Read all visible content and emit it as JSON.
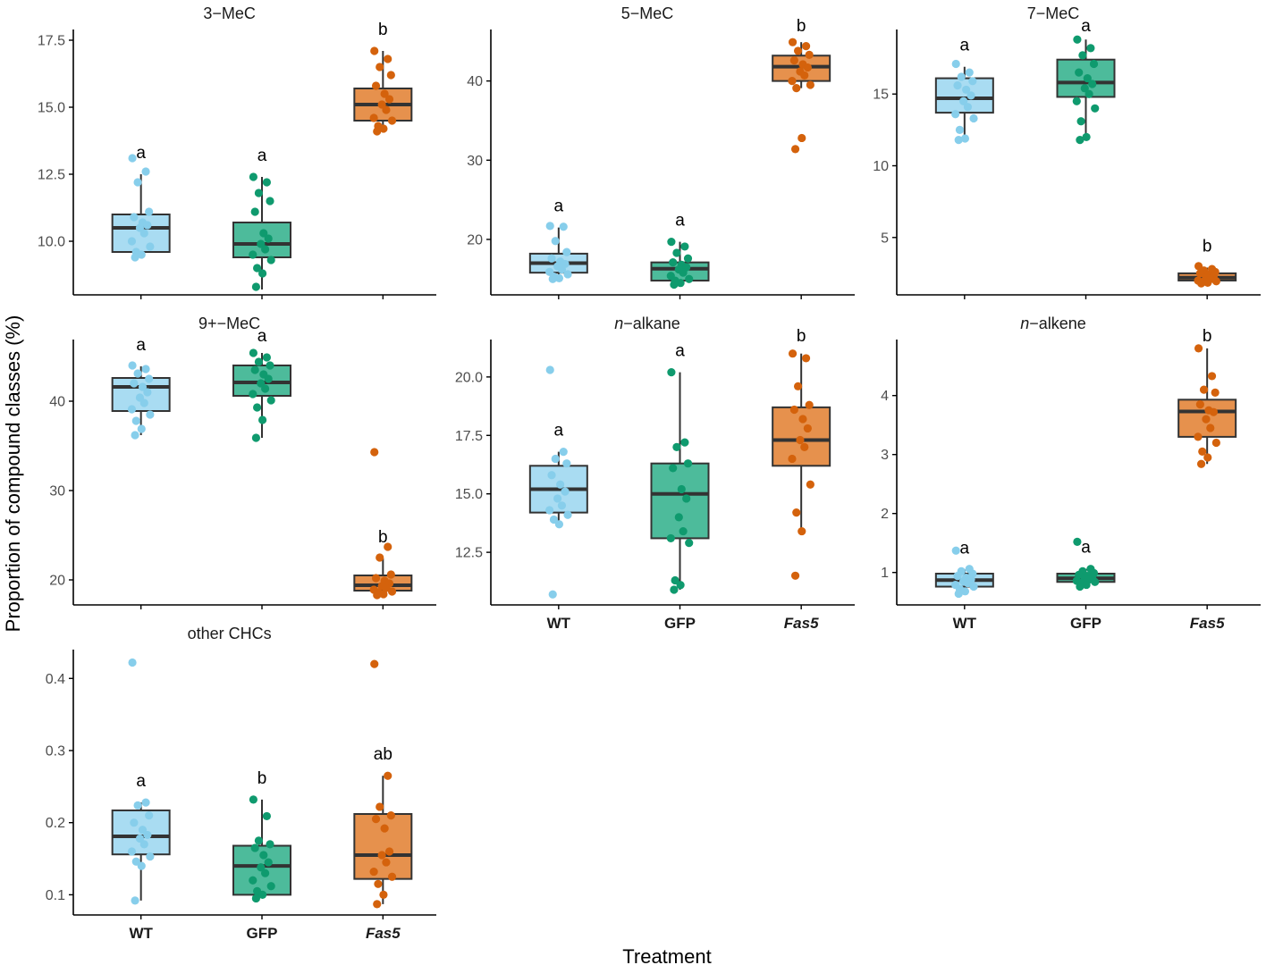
{
  "figure": {
    "ylabel": "Proportion of compound classes (%)",
    "xlabel": "Treatment"
  },
  "colors": {
    "WT": {
      "fill": "#a9dcf2",
      "point": "#87ceeb"
    },
    "GFP": {
      "fill": "#4dbb9b",
      "point": "#0f9a6e"
    },
    "Fas5": {
      "fill": "#e6914d",
      "point": "#d4620c"
    },
    "box_stroke": "#333333",
    "axis": "#000000"
  },
  "chart_data": [
    {
      "type": "box",
      "title": "3−MeC",
      "title_italic_prefix": "",
      "categories": [
        "WT",
        "GFP",
        "Fas5"
      ],
      "category_italic": [
        false,
        false,
        true
      ],
      "show_category_labels": false,
      "ylim": [
        8.0,
        17.9
      ],
      "yticks": [
        10.0,
        12.5,
        15.0,
        17.5
      ],
      "tick_decimals": 1,
      "boxes": [
        {
          "q1": 9.6,
          "median": 10.5,
          "q3": 11.0,
          "whisker_low": 9.4,
          "whisker_high": 12.5,
          "letter": "a"
        },
        {
          "q1": 9.4,
          "median": 9.9,
          "q3": 10.7,
          "whisker_low": 8.2,
          "whisker_high": 12.4,
          "letter": "a"
        },
        {
          "q1": 14.5,
          "median": 15.1,
          "q3": 15.7,
          "whisker_low": 14.1,
          "whisker_high": 17.1,
          "letter": "b"
        }
      ],
      "points": [
        [
          13.1,
          12.6,
          12.2,
          11.1,
          10.9,
          10.7,
          10.6,
          10.5,
          10.3,
          10.0,
          9.8,
          9.6,
          9.5,
          9.4
        ],
        [
          12.4,
          12.2,
          11.8,
          11.5,
          11.1,
          10.3,
          10.1,
          9.9,
          9.7,
          9.5,
          9.3,
          9.0,
          8.8,
          8.3
        ],
        [
          17.1,
          16.8,
          16.5,
          16.2,
          15.8,
          15.5,
          15.3,
          15.1,
          14.9,
          14.6,
          14.5,
          14.3,
          14.2,
          14.1
        ]
      ]
    },
    {
      "type": "box",
      "title": "5−MeC",
      "title_italic_prefix": "",
      "categories": [
        "WT",
        "GFP",
        "Fas5"
      ],
      "category_italic": [
        false,
        false,
        true
      ],
      "show_category_labels": false,
      "ylim": [
        13.0,
        46.5
      ],
      "yticks": [
        20,
        30,
        40
      ],
      "tick_decimals": 0,
      "boxes": [
        {
          "q1": 15.8,
          "median": 17.0,
          "q3": 18.2,
          "whisker_low": 15.0,
          "whisker_high": 21.5,
          "letter": "a"
        },
        {
          "q1": 14.8,
          "median": 16.3,
          "q3": 17.1,
          "whisker_low": 14.3,
          "whisker_high": 19.7,
          "letter": "a"
        },
        {
          "q1": 40.0,
          "median": 41.8,
          "q3": 43.2,
          "whisker_low": 39.1,
          "whisker_high": 44.9,
          "letter": "b"
        }
      ],
      "points": [
        [
          21.7,
          21.6,
          19.8,
          18.4,
          17.6,
          17.2,
          16.9,
          16.6,
          16.2,
          15.9,
          15.6,
          15.3,
          15.1,
          15.0
        ],
        [
          19.7,
          19.1,
          18.3,
          17.6,
          17.1,
          16.8,
          16.5,
          16.2,
          15.8,
          15.4,
          15.0,
          14.8,
          14.5,
          14.3
        ],
        [
          44.9,
          44.4,
          43.8,
          43.3,
          42.6,
          42.1,
          41.7,
          41.2,
          40.7,
          40.0,
          39.5,
          39.1,
          32.8,
          31.4
        ]
      ]
    },
    {
      "type": "box",
      "title": "7−MeC",
      "title_italic_prefix": "",
      "categories": [
        "WT",
        "GFP",
        "Fas5"
      ],
      "category_italic": [
        false,
        false,
        true
      ],
      "show_category_labels": false,
      "ylim": [
        1.0,
        19.5
      ],
      "yticks": [
        5,
        10,
        15
      ],
      "tick_decimals": 0,
      "boxes": [
        {
          "q1": 13.7,
          "median": 14.7,
          "q3": 16.1,
          "whisker_low": 11.8,
          "whisker_high": 16.9,
          "letter": "a"
        },
        {
          "q1": 14.8,
          "median": 15.8,
          "q3": 17.4,
          "whisker_low": 11.8,
          "whisker_high": 18.8,
          "letter": "a"
        },
        {
          "q1": 2.0,
          "median": 2.2,
          "q3": 2.5,
          "whisker_low": 1.8,
          "whisker_high": 2.9,
          "letter": "b"
        }
      ],
      "points": [
        [
          17.1,
          16.5,
          16.2,
          15.9,
          15.6,
          15.3,
          14.9,
          14.5,
          14.1,
          13.6,
          13.3,
          12.5,
          11.9,
          11.8
        ],
        [
          18.8,
          18.2,
          17.7,
          17.1,
          16.5,
          16.1,
          15.7,
          15.4,
          15.0,
          14.5,
          14.0,
          13.1,
          12.0,
          11.8
        ],
        [
          3.0,
          2.8,
          2.7,
          2.6,
          2.5,
          2.4,
          2.3,
          2.2,
          2.1,
          2.0,
          1.95,
          1.9,
          1.85,
          1.8
        ]
      ]
    },
    {
      "type": "box",
      "title": "9+−MeC",
      "title_italic_prefix": "",
      "categories": [
        "WT",
        "GFP",
        "Fas5"
      ],
      "category_italic": [
        false,
        false,
        true
      ],
      "show_category_labels": false,
      "ylim": [
        17.2,
        46.9
      ],
      "yticks": [
        20,
        30,
        40
      ],
      "tick_decimals": 0,
      "boxes": [
        {
          "q1": 38.9,
          "median": 41.6,
          "q3": 42.6,
          "whisker_low": 36.2,
          "whisker_high": 43.9,
          "letter": "a"
        },
        {
          "q1": 40.6,
          "median": 42.1,
          "q3": 44.0,
          "whisker_low": 35.9,
          "whisker_high": 45.4,
          "letter": "a"
        },
        {
          "q1": 18.8,
          "median": 19.4,
          "q3": 20.5,
          "whisker_low": 18.3,
          "whisker_high": 22.4,
          "letter": "b"
        }
      ],
      "points": [
        [
          44.0,
          43.6,
          43.1,
          42.5,
          42.0,
          41.6,
          41.0,
          40.4,
          39.8,
          39.1,
          38.5,
          37.8,
          36.9,
          36.2
        ],
        [
          45.4,
          44.9,
          44.4,
          44.0,
          43.5,
          43.0,
          42.5,
          42.0,
          41.4,
          40.8,
          40.1,
          39.3,
          37.9,
          35.9
        ],
        [
          34.3,
          23.7,
          22.5,
          20.6,
          20.2,
          19.9,
          19.6,
          19.3,
          19.1,
          18.9,
          18.7,
          18.6,
          18.4,
          18.3
        ]
      ]
    },
    {
      "type": "box",
      "title": "alkane",
      "title_italic_prefix": "n",
      "categories": [
        "WT",
        "GFP",
        "Fas5"
      ],
      "category_italic": [
        false,
        false,
        true
      ],
      "show_category_labels": true,
      "ylim": [
        10.25,
        21.6
      ],
      "yticks": [
        12.5,
        15.0,
        17.5,
        20.0
      ],
      "tick_decimals": 1,
      "boxes": [
        {
          "q1": 14.2,
          "median": 15.2,
          "q3": 16.2,
          "whisker_low": 13.7,
          "whisker_high": 16.8,
          "letter": "a"
        },
        {
          "q1": 13.1,
          "median": 15.0,
          "q3": 16.3,
          "whisker_low": 10.9,
          "whisker_high": 20.2,
          "letter": "a"
        },
        {
          "q1": 16.2,
          "median": 17.3,
          "q3": 18.7,
          "whisker_low": 13.4,
          "whisker_high": 21.0,
          "letter": "b"
        }
      ],
      "points": [
        [
          20.3,
          16.8,
          16.5,
          16.3,
          15.8,
          15.4,
          15.1,
          14.8,
          14.5,
          14.3,
          14.1,
          13.9,
          13.7,
          10.7
        ],
        [
          20.2,
          17.2,
          17.0,
          16.3,
          16.1,
          15.2,
          14.8,
          14.0,
          13.4,
          13.1,
          12.9,
          11.3,
          11.1,
          10.9
        ],
        [
          21.0,
          20.8,
          19.6,
          18.8,
          18.6,
          18.2,
          17.8,
          17.3,
          17.0,
          16.5,
          15.4,
          14.2,
          13.4,
          11.5
        ]
      ]
    },
    {
      "type": "box",
      "title": "alkene",
      "title_italic_prefix": "n",
      "categories": [
        "WT",
        "GFP",
        "Fas5"
      ],
      "category_italic": [
        false,
        false,
        true
      ],
      "show_category_labels": true,
      "ylim": [
        0.45,
        4.95
      ],
      "yticks": [
        1,
        2,
        3,
        4
      ],
      "tick_decimals": 0,
      "boxes": [
        {
          "q1": 0.76,
          "median": 0.87,
          "q3": 0.98,
          "whisker_low": 0.64,
          "whisker_high": 1.05,
          "letter": "a"
        },
        {
          "q1": 0.84,
          "median": 0.9,
          "q3": 0.98,
          "whisker_low": 0.76,
          "whisker_high": 1.06,
          "letter": "a"
        },
        {
          "q1": 3.3,
          "median": 3.73,
          "q3": 3.93,
          "whisker_low": 2.84,
          "whisker_high": 4.8,
          "letter": "b"
        }
      ],
      "points": [
        [
          1.37,
          1.06,
          1.02,
          0.98,
          0.94,
          0.91,
          0.88,
          0.85,
          0.82,
          0.79,
          0.76,
          0.72,
          0.68,
          0.64
        ],
        [
          1.52,
          1.06,
          1.02,
          0.99,
          0.96,
          0.94,
          0.92,
          0.9,
          0.88,
          0.86,
          0.84,
          0.82,
          0.79,
          0.76
        ],
        [
          4.8,
          4.33,
          4.1,
          4.05,
          3.85,
          3.75,
          3.72,
          3.6,
          3.45,
          3.3,
          3.2,
          3.05,
          2.95,
          2.84
        ]
      ]
    },
    {
      "type": "box",
      "title": "other CHCs",
      "title_italic_prefix": "",
      "categories": [
        "WT",
        "GFP",
        "Fas5"
      ],
      "category_italic": [
        false,
        false,
        true
      ],
      "show_category_labels": true,
      "ylim": [
        0.072,
        0.44
      ],
      "yticks": [
        0.1,
        0.2,
        0.3,
        0.4
      ],
      "tick_decimals": 1,
      "boxes": [
        {
          "q1": 0.156,
          "median": 0.181,
          "q3": 0.217,
          "whisker_low": 0.092,
          "whisker_high": 0.228,
          "letter": "a"
        },
        {
          "q1": 0.1,
          "median": 0.14,
          "q3": 0.168,
          "whisker_low": 0.095,
          "whisker_high": 0.232,
          "letter": "b"
        },
        {
          "q1": 0.122,
          "median": 0.155,
          "q3": 0.212,
          "whisker_low": 0.087,
          "whisker_high": 0.265,
          "letter": "ab"
        }
      ],
      "points": [
        [
          0.422,
          0.228,
          0.224,
          0.21,
          0.2,
          0.19,
          0.183,
          0.178,
          0.17,
          0.16,
          0.153,
          0.146,
          0.14,
          0.092
        ],
        [
          0.232,
          0.209,
          0.175,
          0.17,
          0.165,
          0.155,
          0.145,
          0.138,
          0.13,
          0.12,
          0.112,
          0.105,
          0.1,
          0.095
        ],
        [
          0.42,
          0.265,
          0.222,
          0.21,
          0.205,
          0.192,
          0.16,
          0.155,
          0.145,
          0.132,
          0.125,
          0.115,
          0.1,
          0.087
        ]
      ]
    }
  ]
}
